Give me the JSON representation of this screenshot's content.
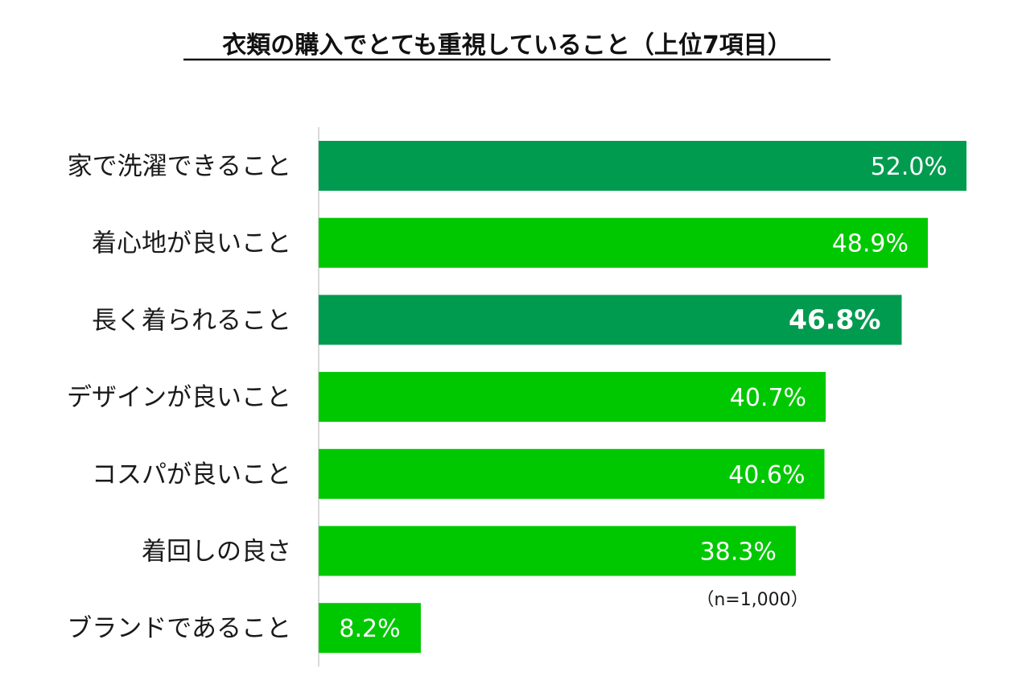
{
  "chart_data": {
    "type": "bar",
    "orientation": "horizontal",
    "title": "衣類の購入でとても重視していること（上位7項目）",
    "note": "（n=1,000）",
    "categories": [
      "家で洗濯できること",
      "着心地が良いこと",
      "長く着られること",
      "デザインが良いこと",
      "コスパが良いこと",
      "着回しの良さ",
      "ブランドであること"
    ],
    "values": [
      52.0,
      48.9,
      46.8,
      40.7,
      40.6,
      38.3,
      8.2
    ],
    "value_labels": [
      "52.0%",
      "48.9%",
      "46.8%",
      "40.7%",
      "40.6%",
      "38.3%",
      "8.2%"
    ],
    "highlight": [
      true,
      false,
      true,
      false,
      false,
      false,
      false
    ],
    "xlim": [
      0,
      52.0
    ],
    "grid": false,
    "legend": "none",
    "colors": {
      "highlight": "#009b4f",
      "normal": "#00c800",
      "axis": "#d9d9d9",
      "value_text": "#ffffff"
    }
  }
}
